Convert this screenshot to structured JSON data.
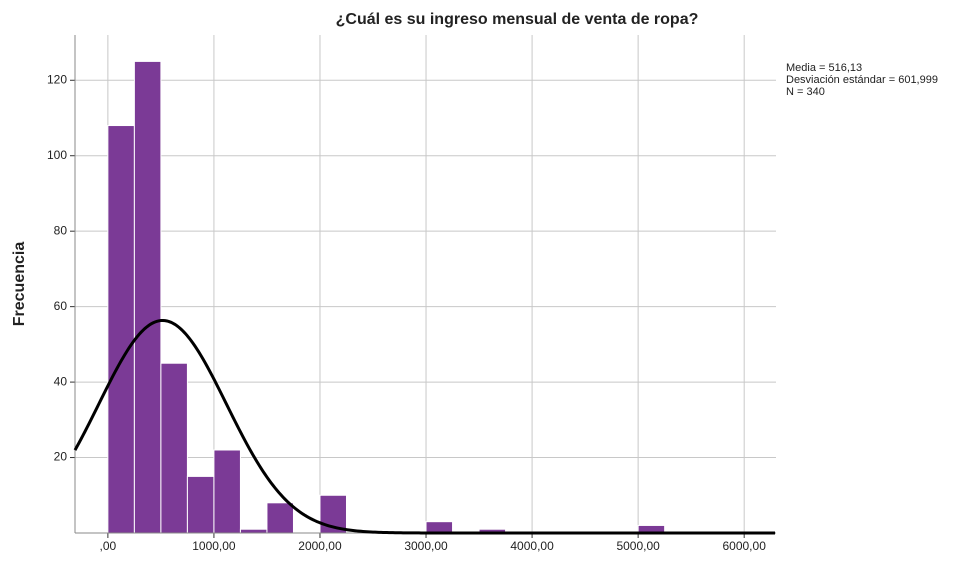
{
  "chart_data": {
    "type": "histogram",
    "title": "¿Cuál es su ingreso mensual de venta de ropa?",
    "ylabel": "Frecuencia",
    "bins": [
      0,
      250,
      500,
      750,
      1000,
      1250,
      1500,
      1750,
      2000,
      2250,
      2500,
      2750,
      3000,
      3250,
      3500,
      3750,
      4000,
      4250,
      4500,
      4750,
      5000,
      5250
    ],
    "values": [
      108,
      125,
      45,
      15,
      22,
      1,
      8,
      0,
      10,
      0,
      0,
      0,
      3,
      0,
      1,
      0,
      0,
      0,
      0,
      0,
      2
    ],
    "color": "#7b3a96",
    "curve_color": "#000000",
    "xlim": [
      -310,
      6300
    ],
    "ylim": [
      0,
      132
    ],
    "xticks": [
      {
        "value": 0,
        "label": ",00"
      },
      {
        "value": 1000,
        "label": "1000,00"
      },
      {
        "value": 2000,
        "label": "2000,00"
      },
      {
        "value": 3000,
        "label": "3000,00"
      },
      {
        "value": 4000,
        "label": "4000,00"
      },
      {
        "value": 5000,
        "label": "5000,00"
      },
      {
        "value": 6000,
        "label": "6000,00"
      }
    ],
    "yticks": [
      20,
      40,
      60,
      80,
      100,
      120
    ],
    "grid": true,
    "stats": [
      {
        "value": 516.13,
        "label": "Media = 516,13"
      },
      {
        "value": 601.999,
        "label": "Desviación estándar = 601,999"
      },
      {
        "value": 340,
        "label": "N = 340"
      }
    ]
  }
}
